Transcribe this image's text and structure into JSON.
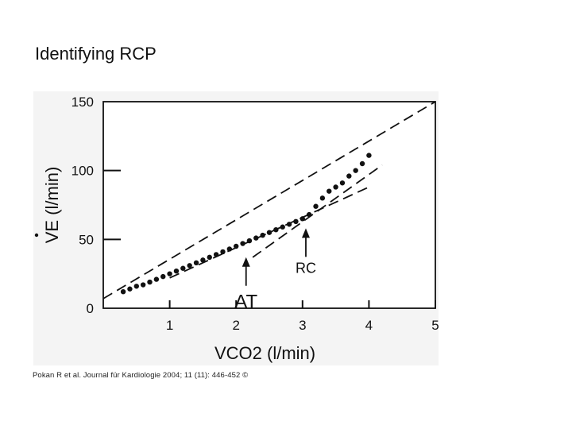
{
  "slide": {
    "title": "Identifying RCP",
    "citation": "Pokan R et al. Journal für Kardiologie 2004; 11 (11): 446-452 ©"
  },
  "chart_data": {
    "type": "scatter",
    "xlabel": "VCO2 (l/min)",
    "ylabel": "VE (l/min)",
    "xlim": [
      0,
      5
    ],
    "ylim": [
      0,
      150
    ],
    "x_ticks": [
      1,
      2,
      3,
      4,
      5
    ],
    "y_ticks": [
      0,
      50,
      100,
      150
    ],
    "grid": false,
    "series": [
      {
        "values": [
          [
            0.3,
            12
          ],
          [
            0.4,
            14
          ],
          [
            0.5,
            16
          ],
          [
            0.6,
            17
          ],
          [
            0.7,
            19
          ],
          [
            0.8,
            21
          ],
          [
            0.9,
            23
          ],
          [
            1.0,
            25
          ],
          [
            1.1,
            27
          ],
          [
            1.2,
            29
          ],
          [
            1.3,
            31
          ],
          [
            1.4,
            33
          ],
          [
            1.5,
            35
          ],
          [
            1.6,
            37
          ],
          [
            1.7,
            39
          ],
          [
            1.8,
            41
          ],
          [
            1.9,
            43
          ],
          [
            2.0,
            45
          ],
          [
            2.1,
            47
          ],
          [
            2.2,
            49
          ],
          [
            2.3,
            51
          ],
          [
            2.4,
            53
          ],
          [
            2.5,
            55
          ],
          [
            2.6,
            57
          ],
          [
            2.7,
            59
          ],
          [
            2.8,
            61
          ],
          [
            2.9,
            63
          ],
          [
            3.0,
            65
          ],
          [
            3.1,
            68
          ],
          [
            3.2,
            74
          ],
          [
            3.3,
            80
          ],
          [
            3.4,
            85
          ],
          [
            3.5,
            88
          ],
          [
            3.6,
            91
          ],
          [
            3.7,
            96
          ],
          [
            3.8,
            100
          ],
          [
            3.9,
            105
          ],
          [
            4.0,
            111
          ]
        ]
      }
    ],
    "lines": [
      {
        "from": [
          0.0,
          7
        ],
        "to": [
          5.0,
          150
        ]
      },
      {
        "from": [
          1.0,
          22
        ],
        "to": [
          4.0,
          88
        ]
      },
      {
        "from": [
          2.25,
          37
        ],
        "to": [
          4.2,
          104
        ]
      }
    ],
    "annotations": [
      {
        "text": "AT",
        "x": 2.15,
        "y": 44
      },
      {
        "text": "RC",
        "x": 3.05,
        "y": 65
      }
    ]
  }
}
